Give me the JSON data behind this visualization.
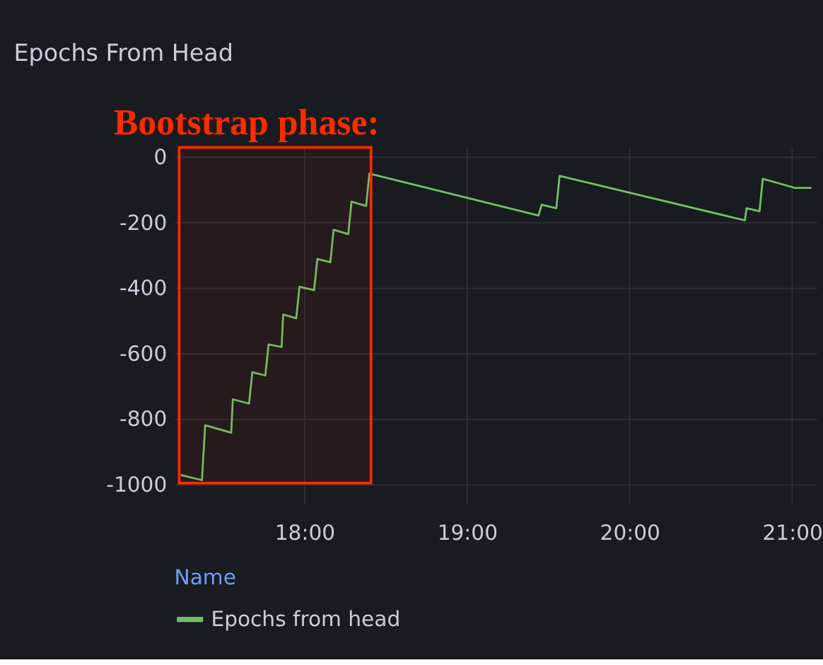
{
  "chart_data": {
    "type": "line",
    "title": "Epochs From Head",
    "legend_title": "Name",
    "xlim": [
      17.2,
      21.15
    ],
    "ylim": [
      -1060,
      30
    ],
    "xticks": [
      {
        "value": 18,
        "label": "18:00"
      },
      {
        "value": 19,
        "label": "19:00"
      },
      {
        "value": 20,
        "label": "20:00"
      },
      {
        "value": 21,
        "label": "21:00"
      }
    ],
    "yticks": [
      0,
      -200,
      -400,
      -600,
      -800,
      -1000
    ],
    "grid": true,
    "legend": "bottom",
    "marker": "none",
    "line_style": "solid",
    "series": [
      {
        "name": "Epochs from head",
        "color": "#73bf69",
        "x": [
          17.24,
          17.37,
          17.39,
          17.55,
          17.56,
          17.66,
          17.68,
          17.76,
          17.78,
          17.86,
          17.87,
          17.95,
          17.97,
          18.06,
          18.08,
          18.16,
          18.18,
          18.27,
          18.29,
          18.38,
          18.4,
          19.44,
          19.46,
          19.55,
          19.57,
          20.71,
          20.72,
          20.8,
          20.82,
          21.02,
          21.12
        ],
        "values": [
          -971,
          -987,
          -819,
          -842,
          -740,
          -753,
          -657,
          -667,
          -572,
          -580,
          -481,
          -492,
          -396,
          -406,
          -311,
          -321,
          -222,
          -235,
          -136,
          -149,
          -50,
          -178,
          -145,
          -156,
          -57,
          -193,
          -156,
          -165,
          -66,
          -94,
          -94
        ]
      }
    ],
    "bands": [
      {
        "axis": "x",
        "from": 17.23,
        "to": 18.41,
        "label": "Bootstrap phase:",
        "color": "#ff2a00"
      }
    ]
  }
}
